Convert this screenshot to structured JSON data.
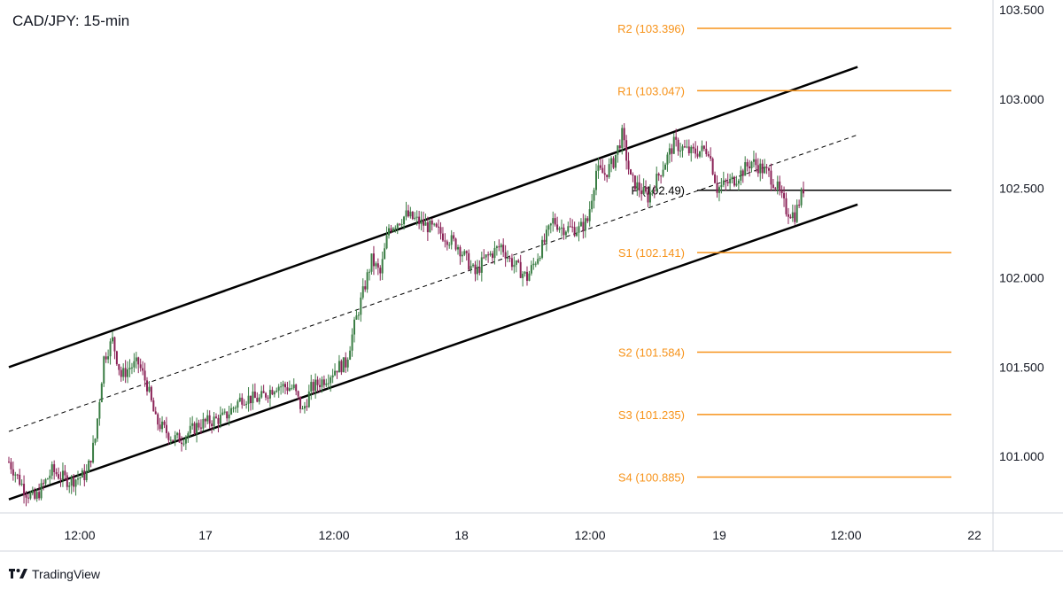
{
  "title": "CAD/JPY: 15-min",
  "branding": {
    "name": "TradingView",
    "logo_icon": "tradingview-logo-icon"
  },
  "colors": {
    "pivot": "#f7931a",
    "pivot_main": "#000000",
    "channel": "#000000",
    "candle_up": "#3a7d44",
    "candle_down": "#8b2257",
    "axis_text": "#131722",
    "axis_border": "#d1d4dc"
  },
  "chart_data": {
    "type": "candlestick",
    "symbol": "CAD/JPY",
    "timeframe": "15-min",
    "ylim": [
      100.7,
      103.5
    ],
    "y_ticks": [
      "103.500",
      "103.000",
      "102.500",
      "102.000",
      "101.500",
      "101.000"
    ],
    "y_tick_values": [
      103.5,
      103.0,
      102.5,
      102.0,
      101.5,
      101.0
    ],
    "x_ticks": [
      "12:00",
      "17",
      "12:00",
      "18",
      "12:00",
      "19",
      "12:00",
      "22"
    ],
    "pivot_levels": [
      {
        "label": "R2 (103.396)",
        "value": 103.396
      },
      {
        "label": "R1 (103.047)",
        "value": 103.047
      },
      {
        "label": "P (102.49)",
        "value": 102.49
      },
      {
        "label": "S1 (102.141)",
        "value": 102.141
      },
      {
        "label": "S2 (101.584)",
        "value": 101.584
      },
      {
        "label": "S3 (101.235)",
        "value": 101.235
      },
      {
        "label": "S4 (100.885)",
        "value": 100.885
      }
    ],
    "channel": {
      "upper": [
        [
          0,
          101.5
        ],
        [
          96,
          103.18
        ]
      ],
      "middle": [
        [
          0,
          101.14
        ],
        [
          96,
          102.8
        ]
      ],
      "lower": [
        [
          0,
          100.76
        ],
        [
          96,
          102.41
        ]
      ]
    },
    "price_path": [
      [
        0,
        100.97
      ],
      [
        2,
        100.8
      ],
      [
        3,
        100.76
      ],
      [
        5,
        100.92
      ],
      [
        7,
        100.86
      ],
      [
        9,
        100.9
      ],
      [
        10,
        101.1
      ],
      [
        11,
        101.55
      ],
      [
        12,
        101.65
      ],
      [
        13,
        101.45
      ],
      [
        14,
        101.5
      ],
      [
        15,
        101.52
      ],
      [
        16,
        101.4
      ],
      [
        17,
        101.2
      ],
      [
        19,
        101.1
      ],
      [
        20,
        101.1
      ],
      [
        22,
        101.18
      ],
      [
        25,
        101.22
      ],
      [
        27,
        101.33
      ],
      [
        29,
        101.32
      ],
      [
        31,
        101.4
      ],
      [
        33,
        101.38
      ],
      [
        34,
        101.25
      ],
      [
        35,
        101.38
      ],
      [
        37,
        101.45
      ],
      [
        38,
        101.5
      ],
      [
        39,
        101.52
      ],
      [
        40,
        101.73
      ],
      [
        42,
        102.1
      ],
      [
        43,
        102.02
      ],
      [
        44,
        102.28
      ],
      [
        46,
        102.35
      ],
      [
        48,
        102.3
      ],
      [
        50,
        102.25
      ],
      [
        52,
        102.18
      ],
      [
        54,
        102.02
      ],
      [
        55,
        102.1
      ],
      [
        57,
        102.18
      ],
      [
        58,
        102.1
      ],
      [
        60,
        102.0
      ],
      [
        62,
        102.2
      ],
      [
        63,
        102.32
      ],
      [
        64,
        102.28
      ],
      [
        66,
        102.27
      ],
      [
        67,
        102.32
      ],
      [
        68,
        102.6
      ],
      [
        69,
        102.58
      ],
      [
        70,
        102.65
      ],
      [
        71,
        102.8
      ],
      [
        72,
        102.55
      ],
      [
        74,
        102.45
      ],
      [
        75,
        102.55
      ],
      [
        76,
        102.65
      ],
      [
        77,
        102.75
      ],
      [
        79,
        102.7
      ],
      [
        81,
        102.72
      ],
      [
        82,
        102.5
      ],
      [
        84,
        102.55
      ],
      [
        86,
        102.65
      ],
      [
        88,
        102.58
      ],
      [
        89,
        102.5
      ],
      [
        90,
        102.38
      ],
      [
        91,
        102.35
      ],
      [
        92,
        102.5
      ]
    ]
  }
}
